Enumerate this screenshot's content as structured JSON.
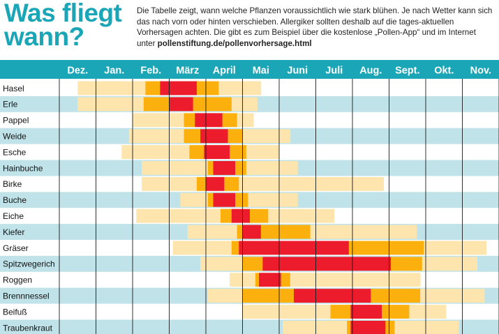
{
  "title": "Was fliegt wann?",
  "intro": {
    "text": "Die Tabelle zeigt, wann welche Pflanzen voraussichtlich wie stark blühen. Je nach Wetter kann sich das nach vorn oder hinten verschieben. Allergiker sollten deshalb auf die tages-aktuellen Vorhersagen achten. Die gibt es zum Beispiel über die kostenlose „Pollen-App“ und im Internet unter ",
    "link": "pollenstiftung.de/pollenvorhersage.html"
  },
  "colors": {
    "header": "#1aa6b7",
    "row_alt": "#bfe3e9",
    "low": "#fde5ad",
    "medium": "#fcb00e",
    "high": "#ec1c2c"
  },
  "chart_data": {
    "type": "heatmap",
    "months": [
      "Dez.",
      "Jan.",
      "Feb.",
      "März",
      "April",
      "Mai",
      "Juni",
      "Juli",
      "Aug.",
      "Sept.",
      "Okt.",
      "Nov."
    ],
    "levels": [
      "low",
      "medium",
      "high"
    ],
    "rows": [
      {
        "plant": "Hasel",
        "segments": [
          [
            0.5,
            2.35,
            "low"
          ],
          [
            2.35,
            2.75,
            "medium"
          ],
          [
            2.75,
            3.75,
            "high"
          ],
          [
            3.75,
            4.35,
            "medium"
          ],
          [
            4.35,
            5.5,
            "low"
          ]
        ]
      },
      {
        "plant": "Erle",
        "segments": [
          [
            0.5,
            2.3,
            "low"
          ],
          [
            2.3,
            3.0,
            "medium"
          ],
          [
            3.0,
            3.65,
            "high"
          ],
          [
            3.65,
            4.7,
            "medium"
          ],
          [
            4.7,
            5.4,
            "low"
          ]
        ]
      },
      {
        "plant": "Pappel",
        "segments": [
          [
            2.0,
            3.4,
            "low"
          ],
          [
            3.4,
            3.7,
            "medium"
          ],
          [
            3.7,
            4.45,
            "high"
          ],
          [
            4.45,
            4.85,
            "medium"
          ],
          [
            4.85,
            5.3,
            "low"
          ]
        ]
      },
      {
        "plant": "Weide",
        "segments": [
          [
            1.9,
            3.4,
            "low"
          ],
          [
            3.4,
            3.85,
            "medium"
          ],
          [
            3.85,
            4.6,
            "high"
          ],
          [
            4.6,
            5.0,
            "medium"
          ],
          [
            5.0,
            6.3,
            "low"
          ]
        ]
      },
      {
        "plant": "Esche",
        "segments": [
          [
            1.7,
            3.55,
            "low"
          ],
          [
            3.55,
            3.95,
            "medium"
          ],
          [
            3.95,
            4.65,
            "high"
          ],
          [
            4.65,
            5.1,
            "medium"
          ],
          [
            5.1,
            6.0,
            "low"
          ]
        ]
      },
      {
        "plant": "Hainbuche",
        "segments": [
          [
            2.25,
            4.05,
            "low"
          ],
          [
            4.05,
            4.2,
            "medium"
          ],
          [
            4.2,
            4.8,
            "high"
          ],
          [
            4.8,
            5.1,
            "medium"
          ],
          [
            5.1,
            6.5,
            "low"
          ]
        ]
      },
      {
        "plant": "Birke",
        "segments": [
          [
            2.25,
            3.75,
            "low"
          ],
          [
            3.75,
            4.0,
            "medium"
          ],
          [
            4.0,
            4.5,
            "high"
          ],
          [
            4.5,
            4.9,
            "medium"
          ],
          [
            4.9,
            6.1,
            "low"
          ],
          [
            6.1,
            8.85,
            "low"
          ]
        ]
      },
      {
        "plant": "Buche",
        "segments": [
          [
            3.3,
            4.05,
            "low"
          ],
          [
            4.05,
            4.2,
            "medium"
          ],
          [
            4.2,
            4.8,
            "high"
          ],
          [
            4.8,
            5.15,
            "medium"
          ],
          [
            5.15,
            6.5,
            "low"
          ]
        ]
      },
      {
        "plant": "Eiche",
        "segments": [
          [
            2.1,
            4.4,
            "low"
          ],
          [
            4.4,
            4.7,
            "medium"
          ],
          [
            4.7,
            5.2,
            "high"
          ],
          [
            5.2,
            5.7,
            "medium"
          ],
          [
            5.7,
            7.5,
            "low"
          ]
        ]
      },
      {
        "plant": "Kiefer",
        "segments": [
          [
            3.5,
            4.85,
            "low"
          ],
          [
            4.85,
            5.0,
            "medium"
          ],
          [
            5.0,
            5.5,
            "high"
          ],
          [
            5.5,
            6.85,
            "medium"
          ],
          [
            6.85,
            9.75,
            "low"
          ]
        ]
      },
      {
        "plant": "Gräser",
        "segments": [
          [
            3.1,
            4.7,
            "low"
          ],
          [
            4.7,
            4.9,
            "medium"
          ],
          [
            4.9,
            5.7,
            "high"
          ],
          [
            5.7,
            7.9,
            "high"
          ],
          [
            7.9,
            9.95,
            "medium"
          ],
          [
            9.95,
            11.65,
            "low"
          ]
        ]
      },
      {
        "plant": "Spitzwegerich",
        "segments": [
          [
            3.85,
            5.0,
            "low"
          ],
          [
            5.0,
            5.55,
            "medium"
          ],
          [
            5.55,
            9.05,
            "high"
          ],
          [
            9.05,
            9.9,
            "medium"
          ],
          [
            9.9,
            11.4,
            "low"
          ]
        ]
      },
      {
        "plant": "Roggen",
        "segments": [
          [
            4.65,
            5.35,
            "low"
          ],
          [
            5.35,
            5.45,
            "medium"
          ],
          [
            5.45,
            6.05,
            "high"
          ],
          [
            6.05,
            6.3,
            "medium"
          ],
          [
            6.3,
            9.85,
            "low"
          ]
        ]
      },
      {
        "plant": "Brennnessel",
        "segments": [
          [
            4.05,
            5.0,
            "low"
          ],
          [
            5.0,
            6.4,
            "medium"
          ],
          [
            6.4,
            8.5,
            "high"
          ],
          [
            8.5,
            9.85,
            "medium"
          ],
          [
            9.85,
            11.6,
            "low"
          ]
        ]
      },
      {
        "plant": "Beifuß",
        "segments": [
          [
            5.0,
            7.4,
            "low"
          ],
          [
            7.4,
            7.95,
            "medium"
          ],
          [
            7.95,
            8.8,
            "high"
          ],
          [
            8.8,
            9.55,
            "medium"
          ],
          [
            9.55,
            10.55,
            "low"
          ]
        ]
      },
      {
        "plant": "Traubenkraut",
        "segments": [
          [
            6.1,
            7.85,
            "low"
          ],
          [
            7.85,
            7.95,
            "medium"
          ],
          [
            7.95,
            8.9,
            "high"
          ],
          [
            8.9,
            9.15,
            "medium"
          ],
          [
            9.15,
            10.9,
            "low"
          ]
        ]
      }
    ]
  }
}
